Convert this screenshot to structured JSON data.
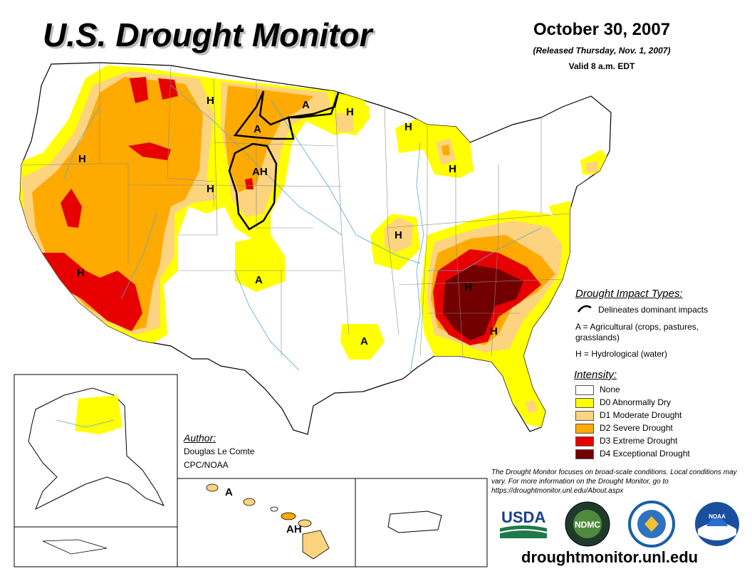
{
  "header": {
    "title": "U.S. Drought Monitor",
    "date": "October 30, 2007",
    "released": "(Released Thursday, Nov. 1, 2007)",
    "valid": "Valid 8 a.m. EDT"
  },
  "impact_types": {
    "heading": "Drought Impact Types:",
    "delineates": "Delineates dominant impacts",
    "agricultural": "A = Agricultural (crops, pastures, grasslands)",
    "agricultural_line1": "A = Agricultural (crops, pastures,",
    "agricultural_line2": "grasslands)",
    "hydrological": "H = Hydrological (water)"
  },
  "intensity": {
    "heading": "Intensity:",
    "levels": [
      {
        "label": "None",
        "color": "#ffffff"
      },
      {
        "label": "D0 Abnormally Dry",
        "color": "#ffff00"
      },
      {
        "label": "D1 Moderate Drought",
        "color": "#fcd37f"
      },
      {
        "label": "D2 Severe Drought",
        "color": "#ffaa00"
      },
      {
        "label": "D3 Extreme Drought",
        "color": "#e60000"
      },
      {
        "label": "D4 Exceptional Drought",
        "color": "#730000"
      }
    ]
  },
  "author": {
    "heading": "Author:",
    "name": "Douglas Le Comte",
    "org": "CPC/NOAA"
  },
  "note": "The Drought Monitor focuses on broad-scale conditions. Local conditions may vary. For more information on the Drought Monitor, go to https://droughtmonitor.unl.edu/About.aspx",
  "url": "droughtmonitor.unl.edu",
  "logos": {
    "usda": "USDA",
    "ndmc": "NDMC",
    "noaa": "NOAA"
  },
  "map_labels": {
    "H": "H",
    "A": "A",
    "AH": "AH"
  }
}
